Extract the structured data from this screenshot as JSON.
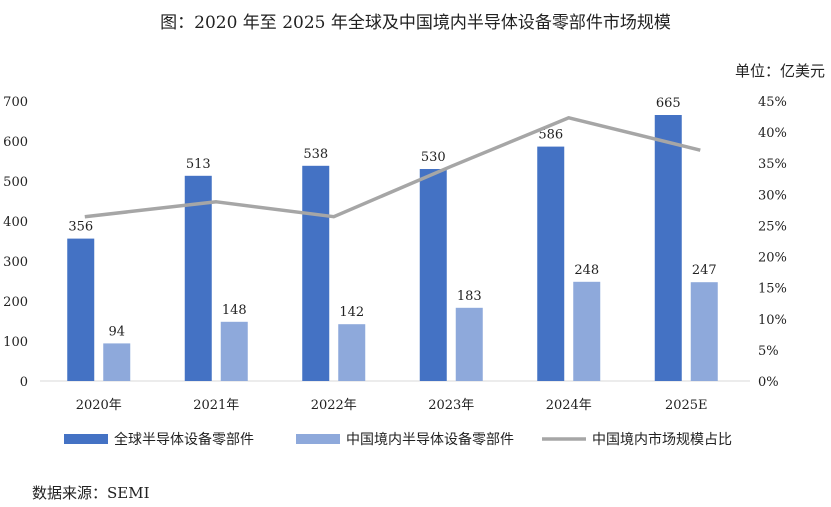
{
  "title": "图：2020 年至 2025 年全球及中国境内半导体设备零部件市场规模",
  "unit": "单位：亿美元",
  "source": "数据来源：SEMI",
  "colors": {
    "global": "#4472C4",
    "china": "#8EA9DB",
    "share": "#A6A6A6"
  },
  "chart_data": {
    "type": "bar",
    "categories": [
      "2020年",
      "2021年",
      "2022年",
      "2023年",
      "2024年",
      "2025E"
    ],
    "series": [
      {
        "name": "全球半导体设备零部件",
        "type": "bar",
        "axis": "left",
        "values": [
          356,
          513,
          538,
          530,
          586,
          665
        ]
      },
      {
        "name": "中国境内半导体设备零部件",
        "type": "bar",
        "axis": "left",
        "values": [
          94,
          148,
          142,
          183,
          248,
          247
        ]
      },
      {
        "name": "中国境内市场规模占比",
        "type": "line",
        "axis": "right",
        "values": [
          26.4,
          28.8,
          26.4,
          34.5,
          42.3,
          37.1
        ]
      }
    ],
    "ylim": [
      0,
      700
    ],
    "yticks": [
      "0",
      "100",
      "200",
      "300",
      "400",
      "500",
      "600",
      "700"
    ],
    "y2lim": [
      0,
      45
    ],
    "y2ticks": [
      "0%",
      "5%",
      "10%",
      "15%",
      "20%",
      "25%",
      "30%",
      "35%",
      "40%",
      "45%"
    ],
    "legend_position": "bottom",
    "grid": false
  }
}
